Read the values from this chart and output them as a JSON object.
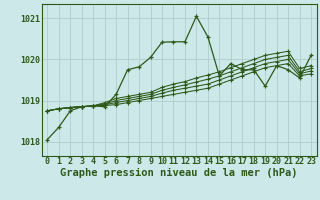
{
  "background_color": "#cce8e8",
  "plot_bg_color": "#cce8e8",
  "grid_color": "#b0cccc",
  "line_color": "#2d5a1b",
  "marker_color": "#2d5a1b",
  "title": "Graphe pression niveau de la mer (hPa)",
  "xlim": [
    -0.5,
    23.5
  ],
  "ylim": [
    1017.65,
    1021.35
  ],
  "yticks": [
    1018,
    1019,
    1020,
    1021
  ],
  "xticks": [
    0,
    1,
    2,
    3,
    4,
    5,
    6,
    7,
    8,
    9,
    10,
    11,
    12,
    13,
    14,
    15,
    16,
    17,
    18,
    19,
    20,
    21,
    22,
    23
  ],
  "series": [
    [
      1018.05,
      1018.35,
      1018.75,
      1018.85,
      1018.87,
      1018.85,
      1019.15,
      1019.75,
      1019.82,
      1020.05,
      1020.42,
      1020.43,
      1020.43,
      1021.05,
      1020.55,
      1019.6,
      1019.9,
      1019.75,
      1019.75,
      1019.35,
      1019.85,
      1019.75,
      1019.55,
      1020.1
    ],
    [
      1018.75,
      1018.8,
      1018.83,
      1018.85,
      1018.87,
      1018.88,
      1018.9,
      1018.95,
      1019.0,
      1019.05,
      1019.1,
      1019.15,
      1019.2,
      1019.25,
      1019.3,
      1019.4,
      1019.5,
      1019.6,
      1019.7,
      1019.8,
      1019.85,
      1019.9,
      1019.6,
      1019.65
    ],
    [
      1018.75,
      1018.8,
      1018.83,
      1018.85,
      1018.87,
      1018.9,
      1018.95,
      1019.0,
      1019.05,
      1019.1,
      1019.18,
      1019.25,
      1019.3,
      1019.35,
      1019.4,
      1019.5,
      1019.6,
      1019.7,
      1019.8,
      1019.9,
      1019.95,
      1020.0,
      1019.65,
      1019.72
    ],
    [
      1018.75,
      1018.8,
      1018.83,
      1018.85,
      1018.87,
      1018.92,
      1019.0,
      1019.05,
      1019.1,
      1019.15,
      1019.25,
      1019.32,
      1019.38,
      1019.45,
      1019.52,
      1019.6,
      1019.7,
      1019.8,
      1019.9,
      1020.0,
      1020.05,
      1020.1,
      1019.7,
      1019.78
    ],
    [
      1018.75,
      1018.8,
      1018.83,
      1018.85,
      1018.87,
      1018.95,
      1019.05,
      1019.1,
      1019.15,
      1019.2,
      1019.32,
      1019.4,
      1019.46,
      1019.55,
      1019.62,
      1019.7,
      1019.8,
      1019.9,
      1020.0,
      1020.1,
      1020.15,
      1020.2,
      1019.78,
      1019.85
    ]
  ],
  "title_fontsize": 7.5,
  "tick_fontsize": 6.0
}
